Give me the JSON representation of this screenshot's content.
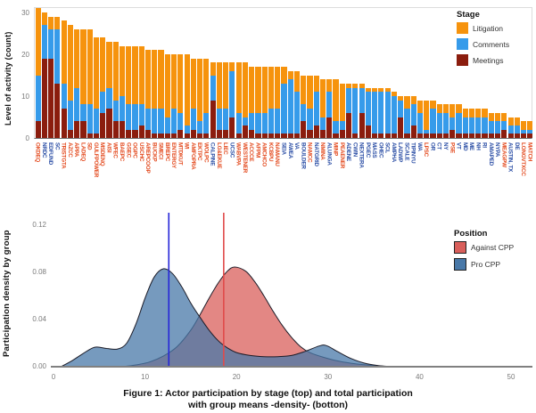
{
  "figure": {
    "caption_line1": "Figure 1: Actor participation by stage (top) and total participation",
    "caption_line2": "with group means -density- (botton)"
  },
  "colors": {
    "litigation": "#F6930D",
    "comments": "#369BEA",
    "meetings": "#8B1D0E",
    "against_cpp_fill": "#D95F5B",
    "pro_cpp_fill": "#4878A8",
    "against_label": "#E34A1E",
    "pro_label": "#2B4EA5",
    "against_mean_line": "#E04B4B",
    "pro_mean_line": "#2626D8",
    "tick_text": "#7a7a7a",
    "axis_line": "#808080"
  },
  "top_chart": {
    "ylabel": "Level of activity (count)",
    "yticks": [
      0,
      10,
      20,
      30
    ],
    "legend": {
      "title": "Stage",
      "items": [
        {
          "label": "Litigation",
          "color": "#F6930D"
        },
        {
          "label": "Comments",
          "color": "#369BEA"
        },
        {
          "label": "Meetings",
          "color": "#8B1D0E"
        }
      ]
    }
  },
  "bottom_chart": {
    "ylabel": "Participation density by group",
    "ytick_labels": [
      "0.00",
      "0.04",
      "0.08",
      "0.12"
    ],
    "ytick_values": [
      0,
      0.04,
      0.08,
      0.12
    ],
    "xticks": [
      0,
      10,
      20,
      30,
      40,
      50
    ],
    "legend": {
      "title": "Position",
      "items": [
        {
          "label": "Against CPP",
          "color": "#D95F5B"
        },
        {
          "label": "Pro CPP",
          "color": "#4878A8"
        }
      ]
    }
  },
  "chart_data": [
    {
      "type": "bar",
      "stacked": true,
      "ylabel": "Level of activity (count)",
      "ylim": [
        0,
        31.5
      ],
      "legend_title": "Stage",
      "categories": [
        "OKDEQ",
        "NRDC",
        "EDFUND",
        "SC",
        "TRISTGTA",
        "AZCC",
        "APPA",
        "LADEQ",
        "SD",
        "GULFPOWER",
        "MSDENQ",
        "AISI",
        "WFEC",
        "BAEPC",
        "GSEC",
        "OGPC",
        "USCHC",
        "AREPCOOP",
        "BUCKP",
        "SMECI",
        "BREPC",
        "ENTERGY",
        "MTDKUT",
        "WI",
        "AMFOPRA",
        "EKTPC",
        "WOLPC",
        "CALPINE",
        "LG&EKUE",
        "LIEC",
        "UCSC",
        "WABVPA",
        "WESTENER",
        "ACCCE",
        "AFPM",
        "AMCHCO",
        "KCBPU",
        "NAMANU",
        "SEIA",
        "AWEA",
        "VA",
        "BOULDER",
        "NAMCC",
        "NATGRID",
        "NMINA",
        "ALUNGA",
        "MINP",
        "PEAENER",
        "ADENE",
        "CWIN",
        "NEXTERA",
        "PGEC",
        "MASS",
        "OHEC",
        "SCL",
        "AMPHA",
        "LADWP",
        "SCALE",
        "TIPINYU",
        "WA",
        "LPSC",
        "OR",
        "CT",
        "NY",
        "PSE",
        "VT",
        "MD",
        "ME",
        "NH",
        "RI",
        "AMAPED",
        "NYPA",
        "MEAGPW",
        "AUSTIN, TX",
        "DE",
        "LONGVTXCC",
        "MATCH"
      ],
      "category_groups": [
        "against",
        "pro",
        "pro",
        "pro",
        "against",
        "against",
        "against",
        "against",
        "against",
        "against",
        "against",
        "against",
        "against",
        "against",
        "against",
        "against",
        "against",
        "against",
        "against",
        "against",
        "against",
        "against",
        "against",
        "against",
        "against",
        "against",
        "against",
        "pro",
        "against",
        "against",
        "pro",
        "against",
        "against",
        "against",
        "against",
        "against",
        "against",
        "against",
        "pro",
        "pro",
        "pro",
        "pro",
        "against",
        "pro",
        "against",
        "pro",
        "against",
        "against",
        "pro",
        "pro",
        "pro",
        "pro",
        "pro",
        "pro",
        "pro",
        "pro",
        "pro",
        "pro",
        "pro",
        "pro",
        "against",
        "pro",
        "pro",
        "pro",
        "against",
        "pro",
        "pro",
        "pro",
        "pro",
        "pro",
        "pro",
        "pro",
        "against",
        "pro",
        "pro",
        "against",
        "against"
      ],
      "series": [
        {
          "name": "Meetings",
          "color": "#8B1D0E",
          "values": [
            4,
            19,
            19,
            13,
            7,
            2,
            4,
            4,
            1,
            1,
            6,
            7,
            4,
            4,
            2,
            2,
            3,
            2,
            1,
            1,
            1,
            1,
            2,
            1,
            2,
            1,
            1,
            9,
            2,
            2,
            5,
            1,
            3,
            2,
            1,
            1,
            1,
            1,
            1,
            1,
            1,
            4,
            2,
            3,
            2,
            5,
            1,
            2,
            6,
            1,
            6,
            3,
            1,
            1,
            1,
            1,
            5,
            1,
            3,
            1,
            1,
            1,
            1,
            1,
            2,
            1,
            1,
            1,
            1,
            1,
            1,
            1,
            2,
            1,
            1,
            1,
            1
          ]
        },
        {
          "name": "Comments",
          "color": "#369BEA",
          "values": [
            11,
            8,
            7,
            13,
            6,
            7,
            8,
            4,
            7,
            6,
            5,
            5,
            5,
            6,
            6,
            6,
            5,
            5,
            6,
            6,
            4,
            6,
            4,
            2,
            5,
            3,
            5,
            6,
            5,
            5,
            11,
            5,
            2,
            4,
            5,
            5,
            6,
            6,
            12,
            13,
            10,
            4,
            5,
            8,
            3,
            6,
            3,
            2,
            6,
            11,
            6,
            8,
            10,
            10,
            10,
            9,
            4,
            6,
            5,
            5,
            1,
            6,
            5,
            5,
            3,
            5,
            4,
            4,
            4,
            4,
            3,
            3,
            2,
            2,
            2,
            1,
            1
          ]
        },
        {
          "name": "Litigation",
          "color": "#F6930D",
          "values": [
            16,
            3,
            3,
            3,
            15,
            18,
            14,
            18,
            18,
            17,
            13,
            11,
            14,
            12,
            14,
            14,
            14,
            14,
            14,
            14,
            15,
            13,
            14,
            17,
            12,
            15,
            13,
            3,
            11,
            11,
            2,
            12,
            13,
            11,
            11,
            11,
            10,
            10,
            4,
            2,
            5,
            7,
            8,
            4,
            9,
            3,
            10,
            9,
            1,
            1,
            1,
            1,
            1,
            1,
            1,
            1,
            1,
            3,
            2,
            3,
            7,
            2,
            2,
            2,
            3,
            2,
            2,
            2,
            2,
            2,
            2,
            2,
            2,
            2,
            2,
            2,
            2
          ]
        }
      ]
    },
    {
      "type": "area",
      "subtype": "density",
      "ylabel": "Participation density by group",
      "xlim": [
        0,
        52
      ],
      "ylim": [
        0,
        0.13
      ],
      "legend_title": "Position",
      "series": [
        {
          "name": "Against CPP",
          "color": "#D95F5B",
          "mean": 18.6,
          "mean_line_color": "#E04B4B",
          "points": [
            [
              7.5,
              0
            ],
            [
              9,
              0.0015
            ],
            [
              10.5,
              0.004
            ],
            [
              12,
              0.009
            ],
            [
              13.5,
              0.017
            ],
            [
              15,
              0.031
            ],
            [
              16,
              0.044
            ],
            [
              17,
              0.058
            ],
            [
              18,
              0.071
            ],
            [
              19,
              0.081
            ],
            [
              19.8,
              0.0845
            ],
            [
              21,
              0.081
            ],
            [
              22,
              0.072
            ],
            [
              23,
              0.06
            ],
            [
              24,
              0.047
            ],
            [
              25,
              0.035
            ],
            [
              26,
              0.025
            ],
            [
              27,
              0.017
            ],
            [
              28,
              0.012
            ],
            [
              29.5,
              0.008
            ],
            [
              31,
              0.005
            ],
            [
              33,
              0.0025
            ],
            [
              35,
              0.001
            ],
            [
              37,
              0
            ]
          ]
        },
        {
          "name": "Pro CPP",
          "color": "#4878A8",
          "mean": 12.6,
          "mean_line_color": "#2626D8",
          "points": [
            [
              0.8,
              0
            ],
            [
              2,
              0.005
            ],
            [
              3.2,
              0.011
            ],
            [
              4.5,
              0.0165
            ],
            [
              5.8,
              0.0155
            ],
            [
              7,
              0.015
            ],
            [
              8,
              0.02
            ],
            [
              9,
              0.036
            ],
            [
              10,
              0.058
            ],
            [
              11,
              0.076
            ],
            [
              12,
              0.083
            ],
            [
              13,
              0.079
            ],
            [
              14,
              0.068
            ],
            [
              15,
              0.054
            ],
            [
              16,
              0.042
            ],
            [
              17,
              0.031
            ],
            [
              18,
              0.022
            ],
            [
              19,
              0.016
            ],
            [
              20,
              0.012
            ],
            [
              21.5,
              0.0095
            ],
            [
              23,
              0.0085
            ],
            [
              24.5,
              0.0085
            ],
            [
              26,
              0.0095
            ],
            [
              27.5,
              0.013
            ],
            [
              29,
              0.0175
            ],
            [
              29.8,
              0.018
            ],
            [
              31,
              0.013
            ],
            [
              32.5,
              0.007
            ],
            [
              34,
              0.003
            ],
            [
              35.5,
              0.001
            ],
            [
              37,
              0
            ]
          ]
        }
      ]
    }
  ]
}
